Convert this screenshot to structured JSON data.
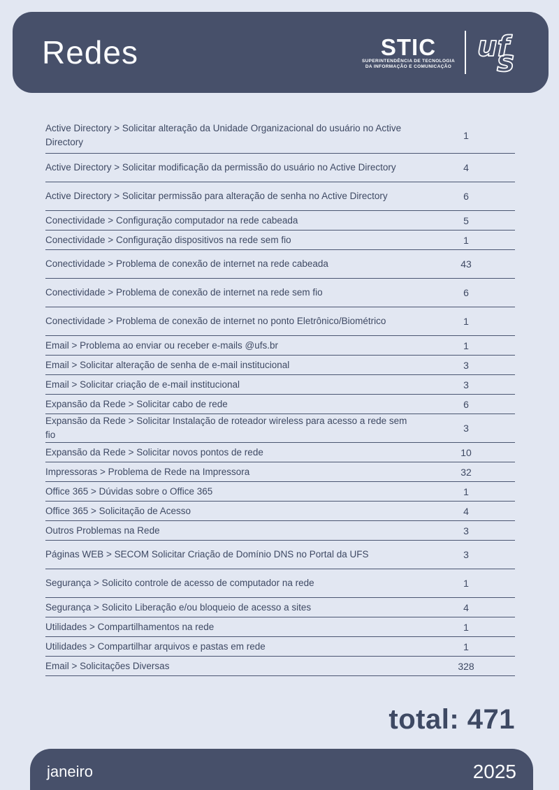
{
  "header": {
    "title": "Redes",
    "logo": {
      "org_acronym": "STIC",
      "org_line1": "SUPERINTENDÊNCIA DE TECNOLOGIA",
      "org_line2": "DA INFORMAÇÃO E COMUNICAÇÃO",
      "university_acronym": "ufs"
    }
  },
  "table": {
    "rows": [
      {
        "label": "Active Directory > Solicitar alteração da Unidade Organizacional do usuário no Active Directory",
        "value": "1",
        "size": "xl"
      },
      {
        "label": "Active Directory > Solicitar modificação da permissão do usuário no Active Directory",
        "value": "4",
        "size": "tall"
      },
      {
        "label": "Active Directory > Solicitar permissão para alteração de senha no Active Directory",
        "value": "6",
        "size": "tall"
      },
      {
        "label": "Conectividade > Configuração computador na rede cabeada",
        "value": "5",
        "size": "normal"
      },
      {
        "label": "Conectividade > Configuração dispositivos na rede sem fio",
        "value": "1",
        "size": "normal"
      },
      {
        "label": "Conectividade > Problema de conexão de internet na rede cabeada",
        "value": "43",
        "size": "tall"
      },
      {
        "label": "Conectividade > Problema de conexão de internet na rede sem fio",
        "value": "6",
        "size": "tall"
      },
      {
        "label": "Conectividade > Problema de conexão de internet no ponto Eletrônico/Biométrico",
        "value": "1",
        "size": "tall"
      },
      {
        "label": "Email > Problema ao enviar ou receber e-mails @ufs.br",
        "value": "1",
        "size": "normal"
      },
      {
        "label": "Email > Solicitar alteração de senha de e-mail institucional",
        "value": "3",
        "size": "normal"
      },
      {
        "label": "Email > Solicitar criação de e-mail institucional",
        "value": "3",
        "size": "normal"
      },
      {
        "label": "Expansão da Rede > Solicitar cabo de rede",
        "value": "6",
        "size": "normal"
      },
      {
        "label": "Expansão da Rede > Solicitar Instalação de roteador wireless para acesso a rede sem fio",
        "value": "3",
        "size": "tall"
      },
      {
        "label": "Expansão da Rede > Solicitar novos pontos de rede",
        "value": "10",
        "size": "normal"
      },
      {
        "label": "Impressoras > Problema de Rede na Impressora",
        "value": "32",
        "size": "normal"
      },
      {
        "label": "Office 365 > Dúvidas sobre o Office 365",
        "value": "1",
        "size": "normal"
      },
      {
        "label": "Office 365 > Solicitação de Acesso",
        "value": "4",
        "size": "normal"
      },
      {
        "label": "Outros Problemas na Rede",
        "value": "3",
        "size": "normal"
      },
      {
        "label": "Páginas WEB > SECOM Solicitar Criação de Domínio DNS no Portal da UFS",
        "value": "3",
        "size": "tall"
      },
      {
        "label": "Segurança > Solicito controle de acesso de computador na rede",
        "value": "1",
        "size": "tall"
      },
      {
        "label": "Segurança > Solicito Liberação e/ou bloqueio de acesso a sites",
        "value": "4",
        "size": "normal"
      },
      {
        "label": "Utilidades > Compartilhamentos na rede",
        "value": "1",
        "size": "normal"
      },
      {
        "label": "Utilidades > Compartilhar arquivos e pastas em rede",
        "value": "1",
        "size": "normal"
      },
      {
        "label": "Email > Solicitações Diversas",
        "value": "328",
        "size": "normal"
      }
    ]
  },
  "total": {
    "text": "total: 471"
  },
  "footer": {
    "month": "janeiro",
    "year": "2025"
  },
  "colors": {
    "dark_slate": "#47506A",
    "text_ink": "#3E4963",
    "rule_line": "#4A5571",
    "page_background": "#E2E7F2",
    "white": "#FAFBFD"
  }
}
